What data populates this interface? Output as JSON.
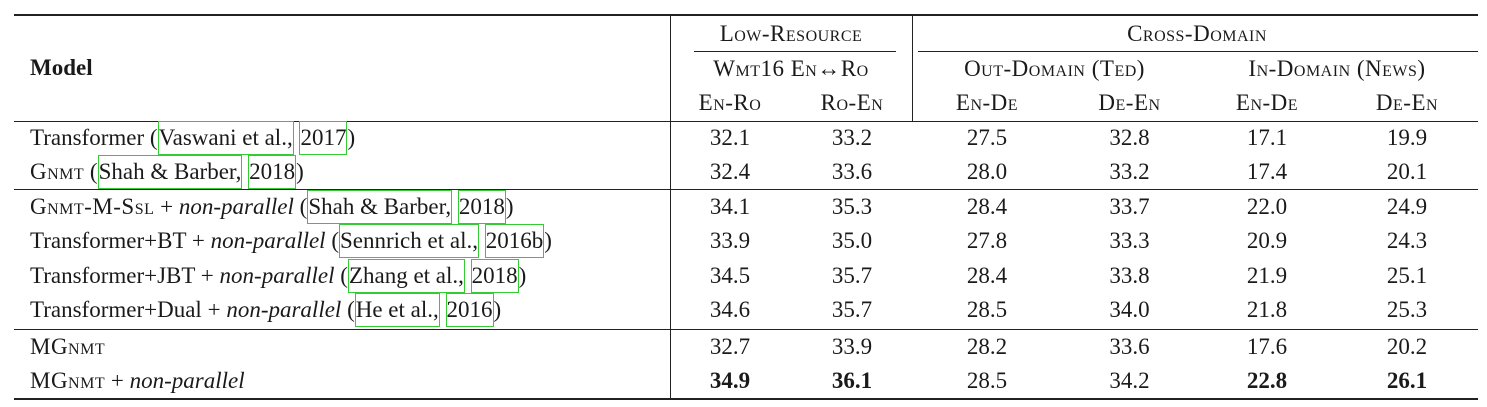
{
  "header": {
    "model_label": "Model",
    "low_resource": "Low-Resource",
    "cross_domain": "Cross-Domain",
    "wmt": "Wmt16 En↔Ro",
    "out_domain": "Out-Domain (Ted)",
    "in_domain": "In-Domain (News)",
    "cols": [
      "En-Ro",
      "Ro-En",
      "En-De",
      "De-En",
      "En-De",
      "De-En"
    ]
  },
  "rows": [
    {
      "name": "Transformer",
      "suffix": "",
      "cite_open": " (",
      "cite_a": "Vaswani et al.,",
      "cite_b": "2017",
      "cite_close": ")",
      "values": [
        "32.1",
        "33.2",
        "27.5",
        "32.8",
        "17.1",
        "19.9"
      ]
    },
    {
      "name": "Gnmt",
      "suffix": "",
      "cite_open": " (",
      "cite_a": "Shah & Barber,",
      "cite_b": "2018",
      "cite_close": ")",
      "values": [
        "32.4",
        "33.6",
        "28.0",
        "33.2",
        "17.4",
        "20.1"
      ]
    },
    {
      "name": "Gnmt-M-Ssl",
      "suffix": " + ",
      "suffix_it": "non-parallel",
      "cite_open": " (",
      "cite_a": "Shah & Barber,",
      "cite_b": "2018",
      "cite_close": ")",
      "values": [
        "34.1",
        "35.3",
        "28.4",
        "33.7",
        "22.0",
        "24.9"
      ]
    },
    {
      "name": "Transformer+BT",
      "suffix": " + ",
      "suffix_it": "non-parallel",
      "cite_open": " (",
      "cite_a": "Sennrich et al.,",
      "cite_b": "2016b",
      "cite_close": ")",
      "values": [
        "33.9",
        "35.0",
        "27.8",
        "33.3",
        "20.9",
        "24.3"
      ]
    },
    {
      "name": "Transformer+JBT",
      "suffix": " + ",
      "suffix_it": "non-parallel",
      "cite_open": " (",
      "cite_a": "Zhang et al.,",
      "cite_b": "2018",
      "cite_close": ")",
      "values": [
        "34.5",
        "35.7",
        "28.4",
        "33.8",
        "21.9",
        "25.1"
      ]
    },
    {
      "name": "Transformer+Dual",
      "suffix": " + ",
      "suffix_it": "non-parallel",
      "cite_open": " (",
      "cite_a": "He et al.,",
      "cite_b": "2016",
      "cite_close": ")",
      "values": [
        "34.6",
        "35.7",
        "28.5",
        "34.0",
        "21.8",
        "25.3"
      ]
    },
    {
      "name": "MGnmt",
      "suffix": "",
      "values": [
        "32.7",
        "33.9",
        "28.2",
        "33.6",
        "17.6",
        "20.2"
      ]
    },
    {
      "name": "MGnmt",
      "suffix": " + ",
      "suffix_it": "non-parallel",
      "values": [
        "34.9",
        "36.1",
        "28.5",
        "34.2",
        "22.8",
        "26.1"
      ],
      "bold": [
        true,
        true,
        false,
        false,
        true,
        true
      ]
    }
  ]
}
